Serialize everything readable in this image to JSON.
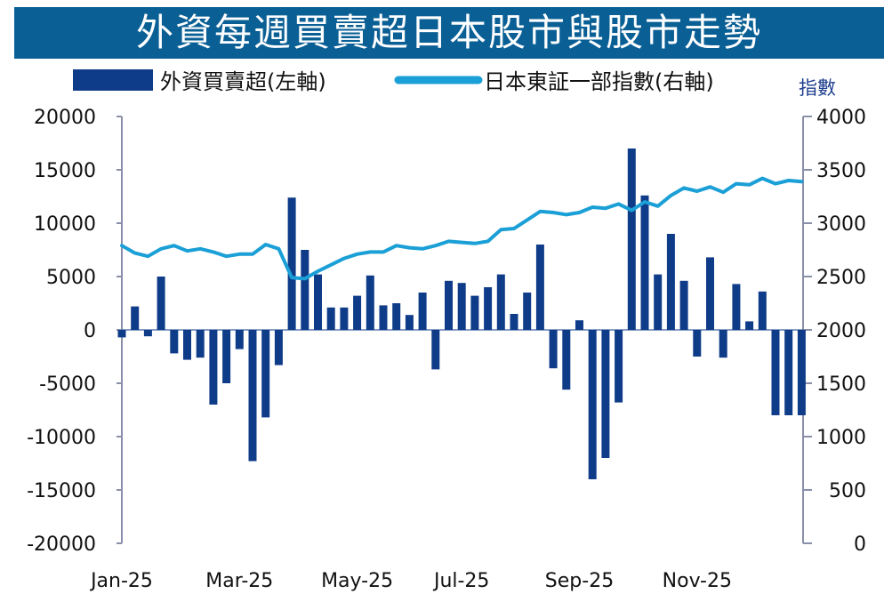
{
  "title": "外資每週買賣超日本股市與股市走勢",
  "chart_data": {
    "type": "bar+line",
    "title": "外資每週買賣超日本股市與股市走勢",
    "left_axis": {
      "ylim": [
        -20000,
        20000
      ],
      "ticks": [
        20000,
        15000,
        10000,
        5000,
        0,
        -5000,
        -10000,
        -15000,
        -20000
      ]
    },
    "right_axis": {
      "title": "指數",
      "ylim": [
        0,
        4000
      ],
      "ticks": [
        4000,
        3500,
        3000,
        2500,
        2000,
        1500,
        1000,
        500,
        0
      ]
    },
    "x_tick_labels": [
      "Jan-25",
      "Mar-25",
      "May-25",
      "Jul-25",
      "Sep-25",
      "Nov-25"
    ],
    "x_tick_weeks": [
      0,
      9,
      18,
      26,
      35,
      44
    ],
    "legend": {
      "bar_label": "外資買賣超(左軸)",
      "line_label": "日本東証一部指數(右軸)"
    },
    "colors": {
      "bar": "#0f3c88",
      "line": "#1a9fd6",
      "axis": "#8a8faa",
      "title_bg": "#0a5f95"
    },
    "series": [
      {
        "name": "外資買賣超(左軸)",
        "axis": "left",
        "type": "bar",
        "values": [
          -700,
          2200,
          -600,
          5000,
          -2200,
          -2800,
          -2600,
          -7000,
          -5000,
          -1800,
          -12300,
          -8200,
          -3300,
          12400,
          7500,
          5200,
          2100,
          2100,
          3200,
          5100,
          2300,
          2500,
          1400,
          3500,
          -3700,
          4600,
          4400,
          3200,
          4000,
          5200,
          1500,
          3500,
          8000,
          -3600,
          -5600,
          900,
          -14000,
          -12000,
          -6800,
          17000,
          12600,
          5200,
          9000,
          4600,
          -2500,
          6800,
          -2600,
          4300,
          800,
          3600,
          -8000,
          -8000,
          -8000
        ]
      },
      {
        "name": "日本東証一部指數(右軸)",
        "axis": "right",
        "type": "line",
        "values": [
          2790,
          2720,
          2690,
          2760,
          2790,
          2740,
          2760,
          2730,
          2690,
          2710,
          2710,
          2800,
          2760,
          2490,
          2480,
          2550,
          2610,
          2670,
          2710,
          2730,
          2730,
          2790,
          2770,
          2760,
          2790,
          2830,
          2820,
          2810,
          2830,
          2940,
          2950,
          3030,
          3110,
          3100,
          3080,
          3100,
          3150,
          3140,
          3180,
          3120,
          3200,
          3160,
          3260,
          3330,
          3300,
          3340,
          3290,
          3370,
          3360,
          3420,
          3370,
          3400,
          3390
        ]
      }
    ]
  }
}
